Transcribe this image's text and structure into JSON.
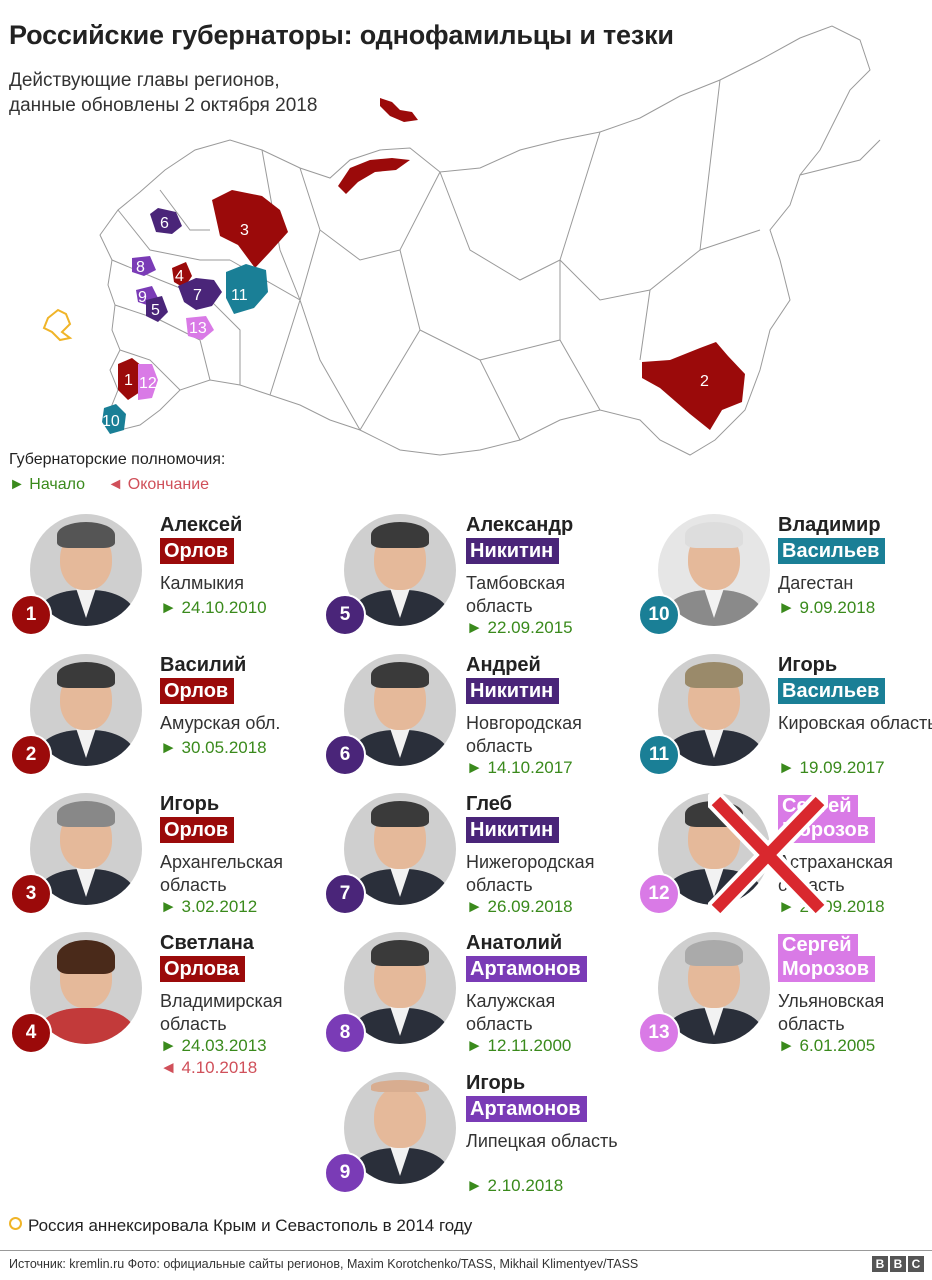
{
  "header": {
    "title": "Российские губернаторы: однофамильцы и тезки",
    "subtitle_line1": "Действующие главы регионов,",
    "subtitle_line2": "данные обновлены 2 октября 2018"
  },
  "map": {
    "labels": [
      "1",
      "2",
      "3",
      "4",
      "5",
      "6",
      "7",
      "8",
      "9",
      "10",
      "11",
      "12",
      "13"
    ]
  },
  "legend": {
    "heading": "Губернаторские полномочия:",
    "start": "► Начало",
    "end": "◄ Окончание"
  },
  "colors": {
    "orlov": "#9b0a0a",
    "nikitin": "#4a2579",
    "artamonov": "#7a3bb6",
    "vasiliev": "#1a7f96",
    "morozov": "#d97ae6",
    "start": "#3a8a1c",
    "end": "#d0505a",
    "crimea": "#f0b428"
  },
  "governors": [
    {
      "num": "1",
      "first": "Алексей",
      "last": "Орлов",
      "region": "Калмыкия",
      "start": "► 24.10.2010"
    },
    {
      "num": "2",
      "first": "Василий",
      "last": "Орлов",
      "region": "Амурская обл.",
      "start": "► 30.05.2018"
    },
    {
      "num": "3",
      "first": "Игорь",
      "last": "Орлов",
      "region": "Архангельская область",
      "start": "► 3.02.2012"
    },
    {
      "num": "4",
      "first": "Светлана",
      "last": "Орлова",
      "region": "Владимирская область",
      "start": "► 24.03.2013",
      "end": "◄ 4.10.2018"
    },
    {
      "num": "5",
      "first": "Александр",
      "last": "Никитин",
      "region": "Тамбовская область",
      "start": "► 22.09.2015"
    },
    {
      "num": "6",
      "first": "Андрей",
      "last": "Никитин",
      "region": "Новгородская область",
      "start": "► 14.10.2017"
    },
    {
      "num": "7",
      "first": "Глеб",
      "last": "Никитин",
      "region": "Нижегородская область",
      "start": "► 26.09.2018"
    },
    {
      "num": "8",
      "first": "Анатолий",
      "last": "Артамонов",
      "region": "Калужская область",
      "start": "► 12.11.2000"
    },
    {
      "num": "9",
      "first": "Игорь",
      "last": "Артамонов",
      "region": "Липецкая область",
      "start": "► 2.10.2018"
    },
    {
      "num": "10",
      "first": "Владимир",
      "last": "Васильев",
      "region": "Дагестан",
      "start": "► 9.09.2018"
    },
    {
      "num": "11",
      "first": "Игорь",
      "last": "Васильев",
      "region": "Кировская область",
      "start": "► 19.09.2017"
    },
    {
      "num": "12",
      "first": "Сергей",
      "last": "Морозов",
      "region": "Астраханская область",
      "start": "► 27.09.2018"
    },
    {
      "num": "13",
      "first": "Сергей",
      "last": "Морозов",
      "region": "Ульяновская область",
      "start": "► 6.01.2005"
    }
  ],
  "footnote": "Россия аннексировала Крым и Севастополь в 2014 году",
  "source": "Источник: kremlin.ru  Фото: официальные сайты регионов, Maxim Korotchenko/TASS, Mikhail Klimentyev/TASS",
  "logo": [
    "B",
    "B",
    "C"
  ]
}
